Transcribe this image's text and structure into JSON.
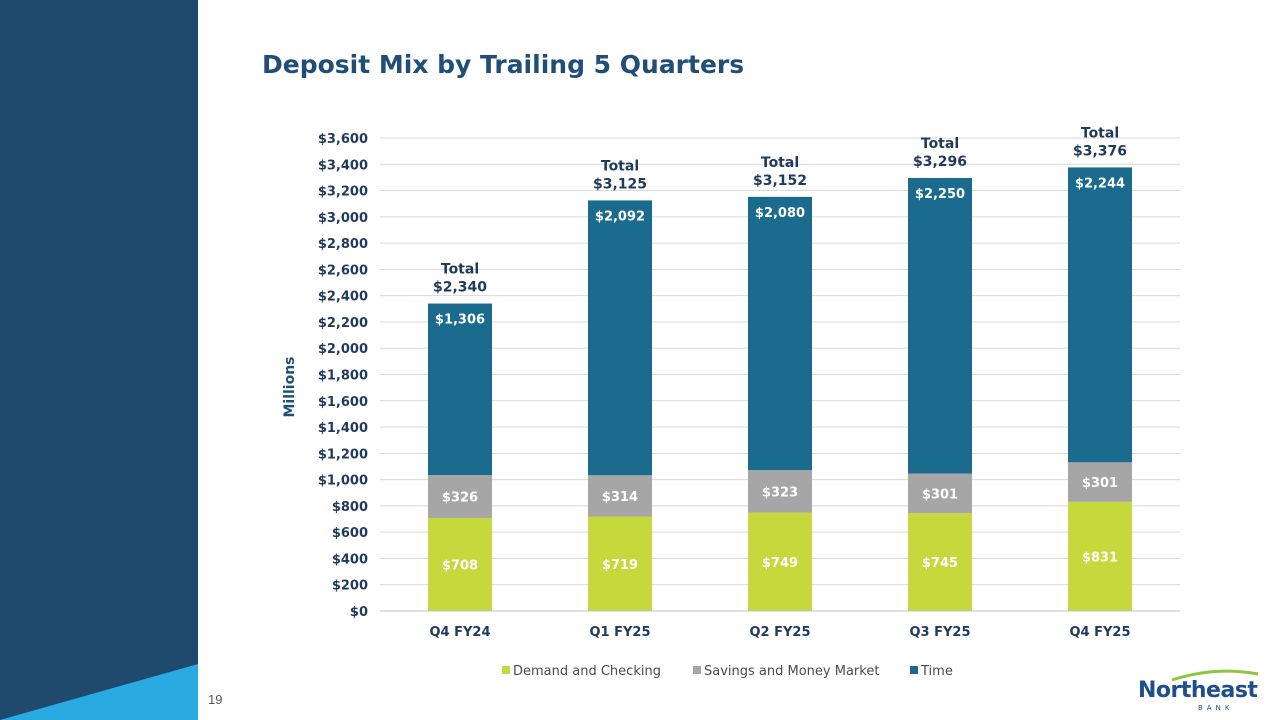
{
  "page": {
    "number": "19"
  },
  "colors": {
    "sidebar": "#1f4a6e",
    "sidebar_accent": "#29abe2",
    "demand": "#c5d93c",
    "savings": "#a6a6a6",
    "time": "#1b6b8e",
    "grid": "#d9d9d9",
    "text_dark": "#1f3a5c"
  },
  "logo": {
    "word": "Northeast",
    "sub": "BANK"
  },
  "chart_data": {
    "type": "bar",
    "stacked": true,
    "title": "Deposit Mix by Trailing 5 Quarters",
    "ylabel": "Millions",
    "ylim": [
      0,
      3600
    ],
    "ytick_step": 200,
    "ytick_labels": [
      "$0",
      "$200",
      "$400",
      "$600",
      "$800",
      "$1,000",
      "$1,200",
      "$1,400",
      "$1,600",
      "$1,800",
      "$2,000",
      "$2,200",
      "$2,400",
      "$2,600",
      "$2,800",
      "$3,000",
      "$3,200",
      "$3,400",
      "$3,600"
    ],
    "grid": true,
    "legend_position": "bottom",
    "categories": [
      "Q4 FY24",
      "Q1 FY25",
      "Q2 FY25",
      "Q3 FY25",
      "Q4 FY25"
    ],
    "series": [
      {
        "name": "Demand and Checking",
        "values": [
          708,
          719,
          749,
          745,
          831
        ],
        "labels": [
          "$708",
          "$719",
          "$749",
          "$745",
          "$831"
        ],
        "color": "#c5d93c"
      },
      {
        "name": "Savings and Money Market",
        "values": [
          326,
          314,
          323,
          301,
          301
        ],
        "labels": [
          "$326",
          "$314",
          "$323",
          "$301",
          "$301"
        ],
        "color": "#a6a6a6"
      },
      {
        "name": "Time",
        "values": [
          1306,
          2092,
          2080,
          2250,
          2244
        ],
        "labels": [
          "$1,306",
          "$2,092",
          "$2,080",
          "$2,250",
          "$2,244"
        ],
        "color": "#1b6b8e"
      }
    ],
    "totals_prefix": "Total",
    "totals": [
      2340,
      3125,
      3152,
      3296,
      3376
    ],
    "totals_labels": [
      "$2,340",
      "$3,125",
      "$3,152",
      "$3,296",
      "$3,376"
    ]
  }
}
